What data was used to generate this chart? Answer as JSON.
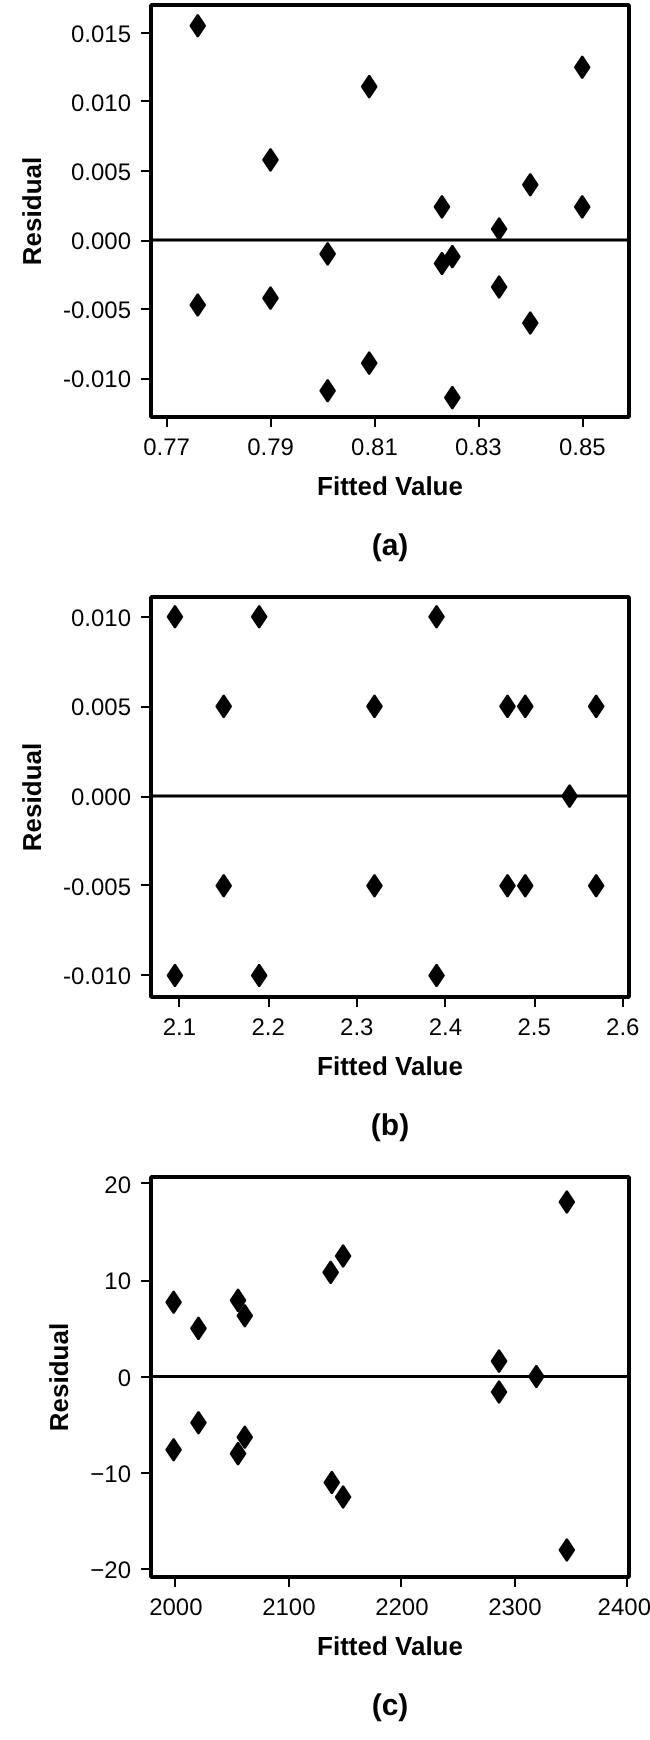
{
  "chart_data": [
    {
      "type": "scatter",
      "xlabel": "Fitted Value",
      "ylabel": "Residual",
      "annotations": [
        "(a)"
      ],
      "marker": "diamond",
      "grid": false,
      "series": [
        {
          "color": "#000000",
          "x": [
            0.776,
            0.776,
            0.79,
            0.79,
            0.801,
            0.801,
            0.809,
            0.809,
            0.823,
            0.823,
            0.825,
            0.825,
            0.834,
            0.834,
            0.84,
            0.84,
            0.85,
            0.85
          ],
          "values": [
            0.0155,
            -0.0047,
            0.0058,
            -0.0042,
            -0.001,
            -0.0109,
            0.0111,
            -0.0089,
            0.0024,
            -0.0017,
            -0.0012,
            -0.0114,
            0.0008,
            -0.0034,
            0.004,
            -0.006,
            0.0125,
            0.0024
          ]
        }
      ],
      "xlim": [
        0.767,
        0.859
      ],
      "xticks": [
        0.77,
        0.79,
        0.81,
        0.83,
        0.85
      ],
      "ylim": [
        -0.0128,
        0.017
      ],
      "yticks": [
        {
          "value": -0.01,
          "label": "-0.010"
        },
        {
          "value": -0.005,
          "label": "-0.005"
        },
        {
          "value": 0,
          "label": "0.000"
        },
        {
          "value": 0.005,
          "label": "0.005"
        },
        {
          "value": 0.01,
          "label": "0.010"
        },
        {
          "value": 0.015,
          "label": "0.015"
        }
      ],
      "ref_lines": [
        {
          "axis": "y",
          "value": 0,
          "color": "#000000"
        }
      ]
    },
    {
      "type": "scatter",
      "xlabel": "Fitted Value",
      "ylabel": "Residual",
      "annotations": [
        "(b)"
      ],
      "marker": "diamond",
      "grid": false,
      "series": [
        {
          "color": "#000000",
          "x": [
            2.095,
            2.095,
            2.15,
            2.15,
            2.19,
            2.19,
            2.32,
            2.32,
            2.39,
            2.39,
            2.47,
            2.47,
            2.49,
            2.49,
            2.54,
            2.57,
            2.57
          ],
          "values": [
            0.01,
            -0.01,
            0.005,
            -0.005,
            0.01,
            -0.01,
            0.005,
            -0.005,
            0.01,
            -0.01,
            0.005,
            -0.005,
            0.005,
            -0.005,
            0,
            0.005,
            -0.005
          ]
        }
      ],
      "xlim": [
        2.068,
        2.607
      ],
      "xticks": [
        2.1,
        2.2,
        2.3,
        2.4,
        2.5,
        2.6
      ],
      "ylim": [
        -0.0112,
        0.0111
      ],
      "yticks": [
        {
          "value": -0.01,
          "label": "-0.010"
        },
        {
          "value": -0.005,
          "label": "-0.005"
        },
        {
          "value": 0,
          "label": "0.000"
        },
        {
          "value": 0.005,
          "label": "0.005"
        },
        {
          "value": 0.01,
          "label": "0.010"
        }
      ],
      "ref_lines": [
        {
          "axis": "y",
          "value": 0,
          "color": "#000000"
        }
      ]
    },
    {
      "type": "scatter",
      "xlabel": "Fitted Value",
      "ylabel": "Residual",
      "annotations": [
        "(c)"
      ],
      "marker": "diamond",
      "grid": false,
      "series": [
        {
          "color": "#000000",
          "x": [
            1998,
            1998,
            2020,
            2020,
            2055,
            2055,
            2061,
            2061,
            2137,
            2138,
            2148,
            2148,
            2286,
            2286,
            2319,
            2346,
            2346
          ],
          "values": [
            7.7,
            -7.6,
            5.0,
            -4.8,
            7.9,
            -8.0,
            6.3,
            -6.3,
            10.8,
            -11.0,
            12.5,
            -12.5,
            1.6,
            -1.6,
            0,
            18.1,
            -18.0
          ]
        }
      ],
      "xlim": [
        1978,
        2401
      ],
      "xticks": [
        2000,
        2100,
        2200,
        2300,
        2400
      ],
      "ylim": [
        -20.8,
        20.7
      ],
      "yticks": [
        -20,
        -10,
        0,
        10,
        20
      ],
      "ref_lines": [
        {
          "axis": "y",
          "value": 0,
          "color": "#000000"
        }
      ]
    }
  ]
}
